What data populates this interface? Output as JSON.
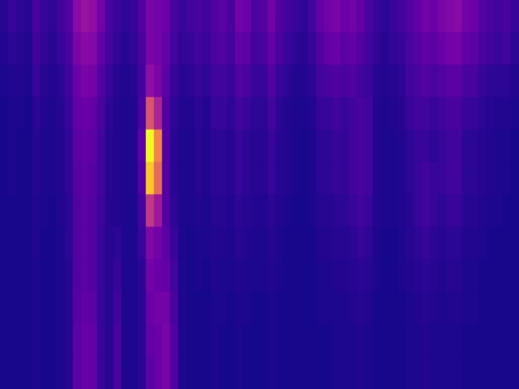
{
  "chart_data": {
    "type": "heatmap",
    "tick_labels": false,
    "grid": false,
    "zlim": [
      0,
      1
    ],
    "z": [
      [
        0.05,
        0.08,
        0.06,
        0.05,
        0.12,
        0.08,
        0.06,
        0.1,
        0.14,
        0.28,
        0.32,
        0.3,
        0.22,
        0.12,
        0.08,
        0.06,
        0.08,
        0.14,
        0.24,
        0.22,
        0.2,
        0.12,
        0.08,
        0.1,
        0.12,
        0.1,
        0.14,
        0.16,
        0.12,
        0.22,
        0.2,
        0.12,
        0.14,
        0.22,
        0.14,
        0.1,
        0.08,
        0.06,
        0.1,
        0.18,
        0.22,
        0.24,
        0.2,
        0.22,
        0.18,
        0.12,
        0.08,
        0.06,
        0.08,
        0.1,
        0.14,
        0.18,
        0.22,
        0.2,
        0.24,
        0.26,
        0.28,
        0.22,
        0.2,
        0.14,
        0.12,
        0.1,
        0.12,
        0.08
      ],
      [
        0.04,
        0.06,
        0.05,
        0.04,
        0.1,
        0.07,
        0.05,
        0.08,
        0.12,
        0.24,
        0.28,
        0.26,
        0.18,
        0.1,
        0.07,
        0.05,
        0.07,
        0.12,
        0.24,
        0.22,
        0.18,
        0.1,
        0.07,
        0.08,
        0.1,
        0.08,
        0.12,
        0.14,
        0.1,
        0.18,
        0.16,
        0.1,
        0.12,
        0.18,
        0.12,
        0.08,
        0.06,
        0.05,
        0.08,
        0.14,
        0.18,
        0.2,
        0.16,
        0.18,
        0.14,
        0.1,
        0.07,
        0.05,
        0.07,
        0.08,
        0.12,
        0.14,
        0.18,
        0.16,
        0.2,
        0.22,
        0.22,
        0.18,
        0.16,
        0.12,
        0.1,
        0.08,
        0.1,
        0.06
      ],
      [
        0.03,
        0.04,
        0.04,
        0.03,
        0.08,
        0.05,
        0.04,
        0.06,
        0.1,
        0.2,
        0.24,
        0.22,
        0.14,
        0.08,
        0.05,
        0.04,
        0.05,
        0.1,
        0.3,
        0.24,
        0.16,
        0.08,
        0.05,
        0.06,
        0.08,
        0.06,
        0.1,
        0.1,
        0.08,
        0.14,
        0.12,
        0.08,
        0.08,
        0.14,
        0.08,
        0.06,
        0.04,
        0.04,
        0.06,
        0.1,
        0.12,
        0.14,
        0.12,
        0.14,
        0.1,
        0.08,
        0.05,
        0.04,
        0.05,
        0.06,
        0.1,
        0.12,
        0.14,
        0.12,
        0.14,
        0.16,
        0.16,
        0.12,
        0.12,
        0.08,
        0.06,
        0.06,
        0.06,
        0.04
      ],
      [
        0.02,
        0.03,
        0.03,
        0.02,
        0.06,
        0.04,
        0.03,
        0.05,
        0.08,
        0.18,
        0.2,
        0.18,
        0.12,
        0.06,
        0.04,
        0.03,
        0.04,
        0.12,
        0.55,
        0.38,
        0.14,
        0.06,
        0.04,
        0.04,
        0.06,
        0.04,
        0.08,
        0.08,
        0.06,
        0.1,
        0.08,
        0.06,
        0.06,
        0.1,
        0.06,
        0.04,
        0.03,
        0.03,
        0.04,
        0.08,
        0.08,
        0.1,
        0.08,
        0.1,
        0.12,
        0.1,
        0.04,
        0.03,
        0.04,
        0.05,
        0.08,
        0.1,
        0.1,
        0.08,
        0.1,
        0.12,
        0.12,
        0.08,
        0.08,
        0.06,
        0.05,
        0.04,
        0.04,
        0.03
      ],
      [
        0.02,
        0.03,
        0.02,
        0.02,
        0.05,
        0.03,
        0.03,
        0.04,
        0.07,
        0.16,
        0.18,
        0.16,
        0.1,
        0.05,
        0.04,
        0.03,
        0.04,
        0.16,
        1.0,
        0.7,
        0.14,
        0.05,
        0.03,
        0.03,
        0.05,
        0.04,
        0.06,
        0.06,
        0.05,
        0.08,
        0.06,
        0.05,
        0.05,
        0.08,
        0.05,
        0.04,
        0.03,
        0.02,
        0.03,
        0.06,
        0.06,
        0.08,
        0.07,
        0.1,
        0.12,
        0.1,
        0.04,
        0.03,
        0.03,
        0.04,
        0.06,
        0.08,
        0.08,
        0.06,
        0.08,
        0.1,
        0.1,
        0.06,
        0.06,
        0.05,
        0.04,
        0.03,
        0.03,
        0.02
      ],
      [
        0.02,
        0.03,
        0.02,
        0.02,
        0.05,
        0.03,
        0.03,
        0.04,
        0.07,
        0.15,
        0.17,
        0.15,
        0.1,
        0.05,
        0.04,
        0.03,
        0.04,
        0.14,
        0.88,
        0.62,
        0.14,
        0.05,
        0.03,
        0.03,
        0.05,
        0.04,
        0.06,
        0.06,
        0.05,
        0.08,
        0.06,
        0.05,
        0.05,
        0.08,
        0.05,
        0.04,
        0.03,
        0.02,
        0.03,
        0.06,
        0.06,
        0.08,
        0.07,
        0.1,
        0.12,
        0.1,
        0.04,
        0.03,
        0.03,
        0.04,
        0.06,
        0.08,
        0.1,
        0.08,
        0.08,
        0.1,
        0.1,
        0.06,
        0.06,
        0.05,
        0.04,
        0.03,
        0.03,
        0.02
      ],
      [
        0.02,
        0.02,
        0.02,
        0.02,
        0.04,
        0.03,
        0.02,
        0.04,
        0.06,
        0.14,
        0.16,
        0.14,
        0.09,
        0.05,
        0.04,
        0.03,
        0.03,
        0.1,
        0.45,
        0.34,
        0.14,
        0.06,
        0.03,
        0.03,
        0.04,
        0.03,
        0.05,
        0.05,
        0.04,
        0.06,
        0.05,
        0.04,
        0.04,
        0.06,
        0.04,
        0.03,
        0.02,
        0.02,
        0.03,
        0.05,
        0.05,
        0.06,
        0.06,
        0.08,
        0.1,
        0.08,
        0.04,
        0.03,
        0.03,
        0.04,
        0.05,
        0.08,
        0.1,
        0.08,
        0.06,
        0.08,
        0.08,
        0.05,
        0.05,
        0.04,
        0.03,
        0.03,
        0.02,
        0.02
      ],
      [
        0.02,
        0.02,
        0.02,
        0.02,
        0.04,
        0.02,
        0.02,
        0.03,
        0.06,
        0.14,
        0.16,
        0.14,
        0.08,
        0.05,
        0.06,
        0.03,
        0.03,
        0.08,
        0.26,
        0.22,
        0.16,
        0.08,
        0.03,
        0.02,
        0.03,
        0.03,
        0.04,
        0.04,
        0.03,
        0.05,
        0.04,
        0.03,
        0.03,
        0.05,
        0.03,
        0.02,
        0.02,
        0.02,
        0.02,
        0.04,
        0.04,
        0.05,
        0.05,
        0.06,
        0.08,
        0.06,
        0.03,
        0.02,
        0.02,
        0.03,
        0.05,
        0.06,
        0.08,
        0.06,
        0.05,
        0.06,
        0.06,
        0.04,
        0.04,
        0.03,
        0.02,
        0.02,
        0.02,
        0.02
      ],
      [
        0.02,
        0.02,
        0.02,
        0.02,
        0.03,
        0.02,
        0.02,
        0.03,
        0.05,
        0.14,
        0.16,
        0.14,
        0.08,
        0.05,
        0.08,
        0.03,
        0.03,
        0.06,
        0.22,
        0.2,
        0.18,
        0.1,
        0.03,
        0.02,
        0.03,
        0.02,
        0.04,
        0.03,
        0.03,
        0.04,
        0.03,
        0.03,
        0.03,
        0.04,
        0.03,
        0.02,
        0.02,
        0.02,
        0.02,
        0.03,
        0.03,
        0.04,
        0.04,
        0.05,
        0.06,
        0.05,
        0.03,
        0.02,
        0.02,
        0.03,
        0.04,
        0.05,
        0.06,
        0.05,
        0.04,
        0.05,
        0.05,
        0.03,
        0.03,
        0.02,
        0.02,
        0.02,
        0.02,
        0.02
      ],
      [
        0.02,
        0.02,
        0.02,
        0.02,
        0.03,
        0.02,
        0.02,
        0.03,
        0.05,
        0.15,
        0.18,
        0.16,
        0.08,
        0.05,
        0.1,
        0.03,
        0.03,
        0.06,
        0.2,
        0.22,
        0.22,
        0.12,
        0.03,
        0.02,
        0.02,
        0.02,
        0.03,
        0.03,
        0.02,
        0.03,
        0.03,
        0.02,
        0.02,
        0.03,
        0.02,
        0.02,
        0.02,
        0.02,
        0.02,
        0.03,
        0.03,
        0.03,
        0.03,
        0.04,
        0.05,
        0.04,
        0.02,
        0.02,
        0.02,
        0.02,
        0.03,
        0.04,
        0.05,
        0.04,
        0.03,
        0.04,
        0.04,
        0.03,
        0.03,
        0.02,
        0.02,
        0.02,
        0.02,
        0.02
      ],
      [
        0.02,
        0.02,
        0.02,
        0.02,
        0.03,
        0.02,
        0.02,
        0.03,
        0.05,
        0.16,
        0.2,
        0.18,
        0.08,
        0.05,
        0.12,
        0.03,
        0.03,
        0.06,
        0.18,
        0.2,
        0.24,
        0.14,
        0.03,
        0.02,
        0.02,
        0.02,
        0.03,
        0.02,
        0.02,
        0.03,
        0.02,
        0.02,
        0.02,
        0.03,
        0.02,
        0.02,
        0.02,
        0.02,
        0.02,
        0.02,
        0.02,
        0.03,
        0.03,
        0.03,
        0.04,
        0.03,
        0.02,
        0.02,
        0.02,
        0.02,
        0.03,
        0.03,
        0.04,
        0.03,
        0.03,
        0.03,
        0.03,
        0.02,
        0.02,
        0.02,
        0.02,
        0.02,
        0.02,
        0.02
      ],
      [
        0.02,
        0.02,
        0.02,
        0.02,
        0.03,
        0.02,
        0.02,
        0.03,
        0.05,
        0.16,
        0.2,
        0.18,
        0.08,
        0.05,
        0.12,
        0.03,
        0.03,
        0.06,
        0.16,
        0.2,
        0.24,
        0.14,
        0.03,
        0.02,
        0.02,
        0.02,
        0.03,
        0.02,
        0.02,
        0.03,
        0.02,
        0.02,
        0.02,
        0.03,
        0.02,
        0.02,
        0.02,
        0.02,
        0.02,
        0.02,
        0.02,
        0.03,
        0.03,
        0.03,
        0.04,
        0.03,
        0.02,
        0.02,
        0.02,
        0.02,
        0.03,
        0.03,
        0.04,
        0.03,
        0.03,
        0.03,
        0.03,
        0.02,
        0.02,
        0.02,
        0.02,
        0.02,
        0.02,
        0.02
      ]
    ]
  }
}
